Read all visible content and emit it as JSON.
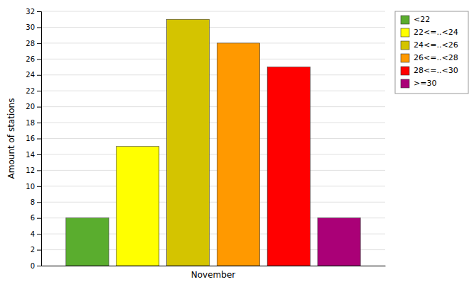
{
  "chart_data": {
    "type": "bar",
    "ylabel": "Amount of stations",
    "categories": [
      "November"
    ],
    "series": [
      {
        "name": "<22",
        "color": "#5aad2e",
        "values": [
          6
        ]
      },
      {
        "name": "22<=..<24",
        "color": "#ffff00",
        "values": [
          15
        ]
      },
      {
        "name": "24<=..<26",
        "color": "#d4c400",
        "values": [
          31
        ]
      },
      {
        "name": "26<=..<28",
        "color": "#ff9900",
        "values": [
          28
        ]
      },
      {
        "name": "28<=..<30",
        "color": "#ff0000",
        "values": [
          25
        ]
      },
      {
        "name": ">=30",
        "color": "#aa0077",
        "values": [
          6
        ]
      }
    ],
    "ylim": [
      0,
      32
    ],
    "yticks": [
      0,
      2,
      4,
      6,
      8,
      10,
      12,
      14,
      16,
      18,
      20,
      22,
      24,
      26,
      28,
      30,
      32
    ],
    "grid": true,
    "legend": "upper-right"
  }
}
